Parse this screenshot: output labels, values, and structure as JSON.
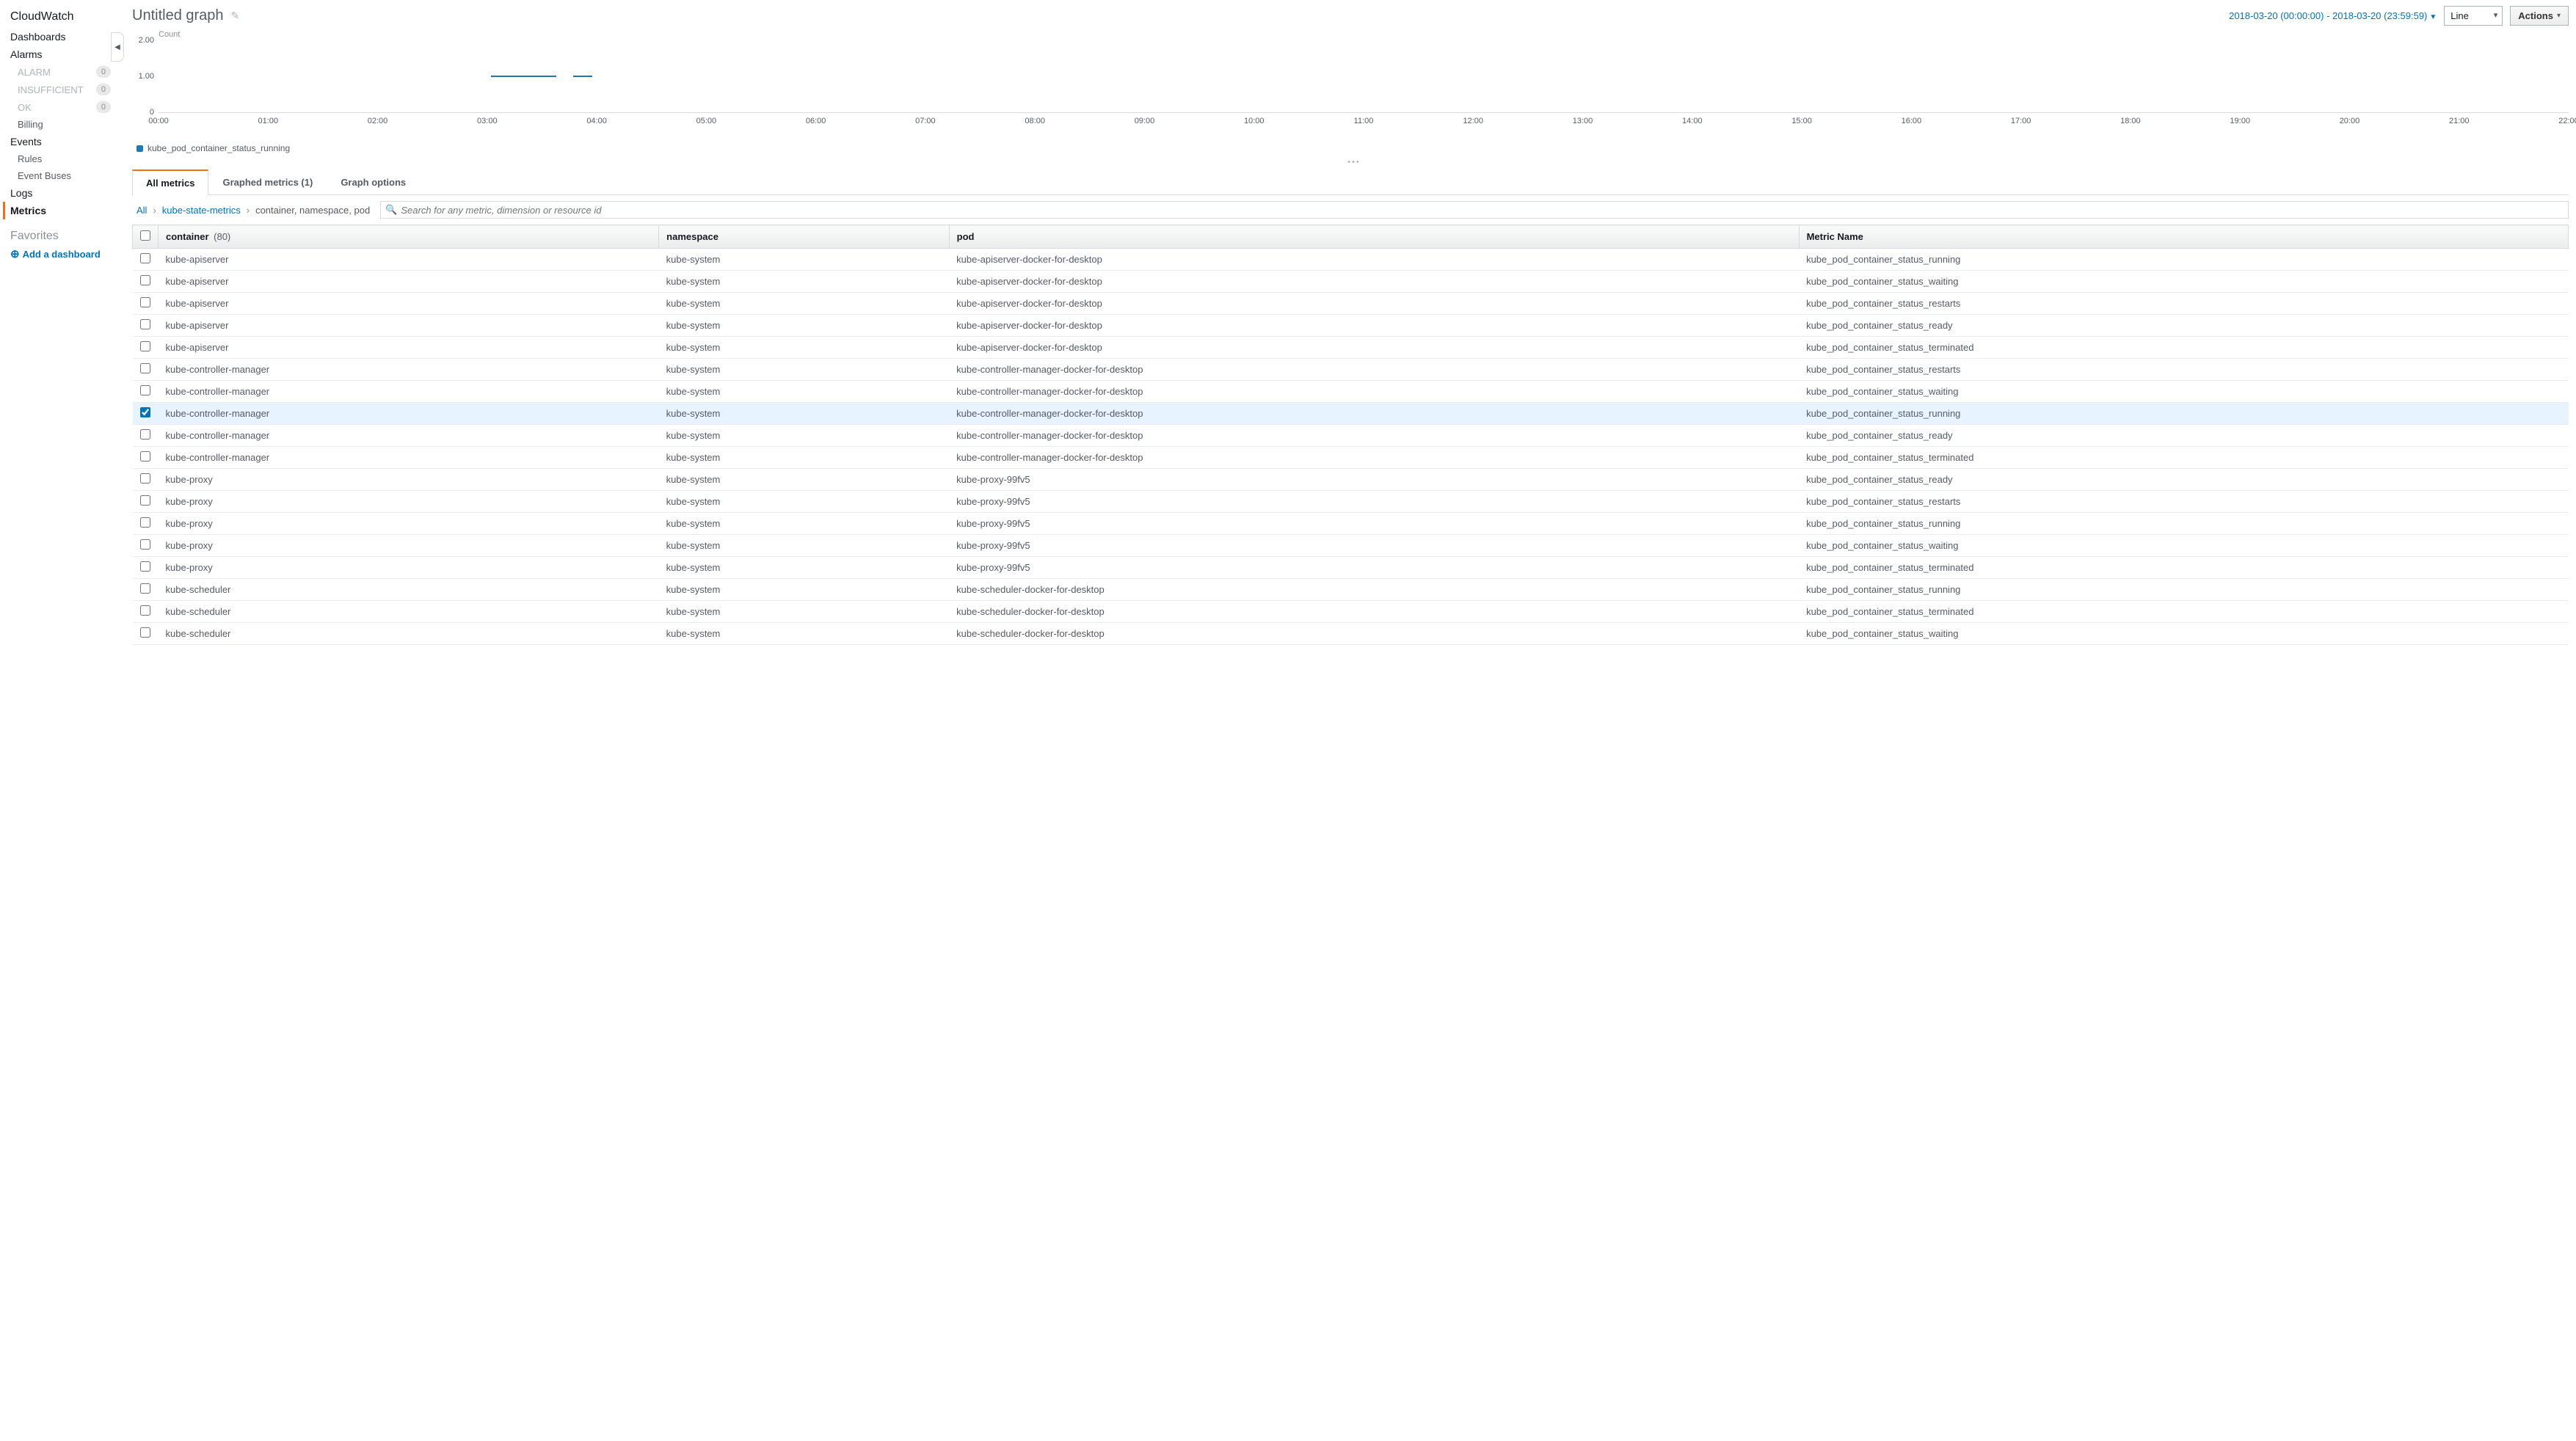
{
  "sidebar": {
    "title": "CloudWatch",
    "sections": [
      {
        "label": "Dashboards",
        "items": []
      },
      {
        "label": "Alarms",
        "items": [
          {
            "label": "ALARM",
            "badge": "0"
          },
          {
            "label": "INSUFFICIENT",
            "badge": "0"
          },
          {
            "label": "OK",
            "badge": "0"
          },
          {
            "label": "Billing",
            "dark": true
          }
        ]
      },
      {
        "label": "Events",
        "items": [
          {
            "label": "Rules",
            "dark": true
          },
          {
            "label": "Event Buses",
            "dark": true
          }
        ]
      },
      {
        "label": "Logs",
        "items": []
      },
      {
        "label": "Metrics",
        "active": true,
        "items": []
      }
    ],
    "favorites_label": "Favorites",
    "add_dashboard": "Add a dashboard"
  },
  "topbar": {
    "title": "Untitled graph",
    "timerange": "2018-03-20 (00:00:00) - 2018-03-20 (23:59:59)",
    "chart_type": "Line",
    "actions_label": "Actions"
  },
  "chart": {
    "ylabel": "Count",
    "yticks": [
      "2.00",
      "1.00",
      "0"
    ],
    "xticks": [
      "00:00",
      "01:00",
      "02:00",
      "03:00",
      "04:00",
      "05:00",
      "06:00",
      "07:00",
      "08:00",
      "09:00",
      "10:00",
      "11:00",
      "12:00",
      "13:00",
      "14:00",
      "15:00",
      "16:00",
      "17:00",
      "18:00",
      "19:00",
      "20:00",
      "21:00",
      "22:00"
    ],
    "legend_label": "kube_pod_container_status_running",
    "series_color": "#1f77b4",
    "line_segments": [
      {
        "x_start_pct": 13.8,
        "x_end_pct": 16.5,
        "y_val": 1.0,
        "y_max": 2.0
      },
      {
        "x_start_pct": 17.2,
        "x_end_pct": 18.0,
        "y_val": 1.0,
        "y_max": 2.0
      }
    ]
  },
  "tabs": {
    "all_metrics": "All metrics",
    "graphed_metrics": "Graphed metrics (1)",
    "graph_options": "Graph options"
  },
  "breadcrumb": {
    "all": "All",
    "namespace": "kube-state-metrics",
    "dimensions": "container, namespace, pod"
  },
  "search": {
    "placeholder": "Search for any metric, dimension or resource id"
  },
  "table": {
    "columns": {
      "container": "container",
      "container_count": "(80)",
      "namespace": "namespace",
      "pod": "pod",
      "metric": "Metric Name"
    },
    "rows": [
      {
        "checked": false,
        "container": "kube-apiserver",
        "namespace": "kube-system",
        "pod": "kube-apiserver-docker-for-desktop",
        "metric": "kube_pod_container_status_running"
      },
      {
        "checked": false,
        "container": "kube-apiserver",
        "namespace": "kube-system",
        "pod": "kube-apiserver-docker-for-desktop",
        "metric": "kube_pod_container_status_waiting"
      },
      {
        "checked": false,
        "container": "kube-apiserver",
        "namespace": "kube-system",
        "pod": "kube-apiserver-docker-for-desktop",
        "metric": "kube_pod_container_status_restarts"
      },
      {
        "checked": false,
        "container": "kube-apiserver",
        "namespace": "kube-system",
        "pod": "kube-apiserver-docker-for-desktop",
        "metric": "kube_pod_container_status_ready"
      },
      {
        "checked": false,
        "container": "kube-apiserver",
        "namespace": "kube-system",
        "pod": "kube-apiserver-docker-for-desktop",
        "metric": "kube_pod_container_status_terminated"
      },
      {
        "checked": false,
        "container": "kube-controller-manager",
        "namespace": "kube-system",
        "pod": "kube-controller-manager-docker-for-desktop",
        "metric": "kube_pod_container_status_restarts"
      },
      {
        "checked": false,
        "container": "kube-controller-manager",
        "namespace": "kube-system",
        "pod": "kube-controller-manager-docker-for-desktop",
        "metric": "kube_pod_container_status_waiting"
      },
      {
        "checked": true,
        "container": "kube-controller-manager",
        "namespace": "kube-system",
        "pod": "kube-controller-manager-docker-for-desktop",
        "metric": "kube_pod_container_status_running"
      },
      {
        "checked": false,
        "container": "kube-controller-manager",
        "namespace": "kube-system",
        "pod": "kube-controller-manager-docker-for-desktop",
        "metric": "kube_pod_container_status_ready"
      },
      {
        "checked": false,
        "container": "kube-controller-manager",
        "namespace": "kube-system",
        "pod": "kube-controller-manager-docker-for-desktop",
        "metric": "kube_pod_container_status_terminated"
      },
      {
        "checked": false,
        "container": "kube-proxy",
        "namespace": "kube-system",
        "pod": "kube-proxy-99fv5",
        "metric": "kube_pod_container_status_ready"
      },
      {
        "checked": false,
        "container": "kube-proxy",
        "namespace": "kube-system",
        "pod": "kube-proxy-99fv5",
        "metric": "kube_pod_container_status_restarts"
      },
      {
        "checked": false,
        "container": "kube-proxy",
        "namespace": "kube-system",
        "pod": "kube-proxy-99fv5",
        "metric": "kube_pod_container_status_running"
      },
      {
        "checked": false,
        "container": "kube-proxy",
        "namespace": "kube-system",
        "pod": "kube-proxy-99fv5",
        "metric": "kube_pod_container_status_waiting"
      },
      {
        "checked": false,
        "container": "kube-proxy",
        "namespace": "kube-system",
        "pod": "kube-proxy-99fv5",
        "metric": "kube_pod_container_status_terminated"
      },
      {
        "checked": false,
        "container": "kube-scheduler",
        "namespace": "kube-system",
        "pod": "kube-scheduler-docker-for-desktop",
        "metric": "kube_pod_container_status_running"
      },
      {
        "checked": false,
        "container": "kube-scheduler",
        "namespace": "kube-system",
        "pod": "kube-scheduler-docker-for-desktop",
        "metric": "kube_pod_container_status_terminated"
      },
      {
        "checked": false,
        "container": "kube-scheduler",
        "namespace": "kube-system",
        "pod": "kube-scheduler-docker-for-desktop",
        "metric": "kube_pod_container_status_waiting"
      }
    ]
  }
}
